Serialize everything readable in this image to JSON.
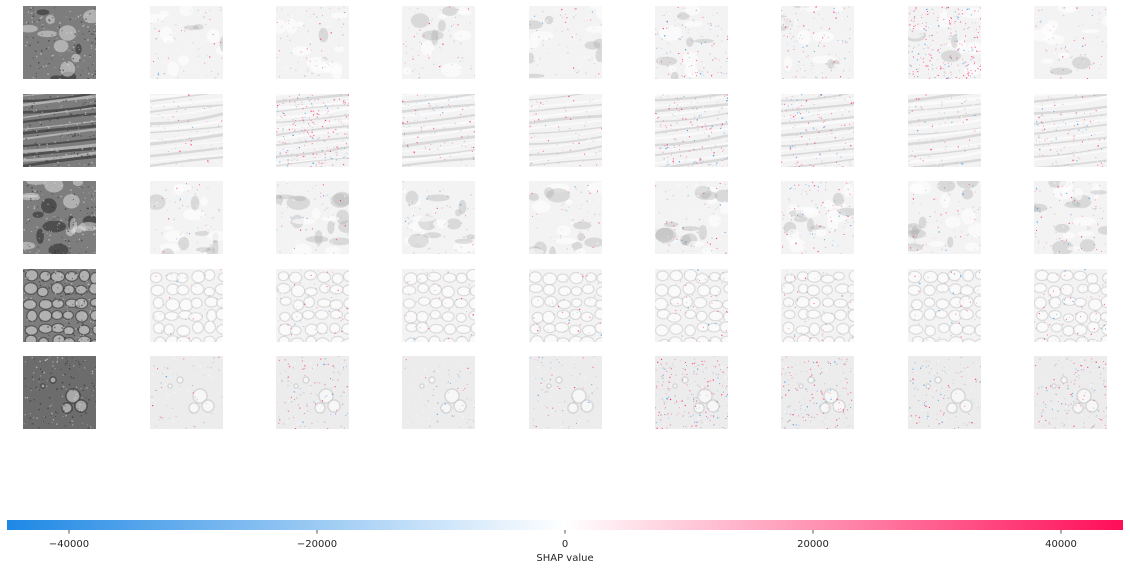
{
  "chart_data": {
    "type": "heatmap",
    "title": "",
    "description_visible": "",
    "rows": 5,
    "columns": 9,
    "first_column": "input-image",
    "row_textures": [
      "rough-cratered",
      "ridged-streaks",
      "rocky-knobs",
      "polygonal-cells",
      "crater-cluster"
    ],
    "colorbar": {
      "label": "SHAP value",
      "min": -45000,
      "max": 45000,
      "ticks": [
        -40000,
        -20000,
        0,
        20000,
        40000
      ],
      "tick_labels": [
        "−40000",
        "−20000",
        "0",
        "20000",
        "40000"
      ],
      "color_negative": "#1E88E5",
      "color_zero": "#FFFFFF",
      "color_positive": "#FF0D57"
    },
    "attribution_intensity": [
      [
        0.0,
        0.05,
        0.08,
        0.1,
        0.06,
        0.2,
        0.18,
        0.55,
        0.08
      ],
      [
        0.0,
        0.06,
        0.45,
        0.15,
        0.08,
        0.3,
        0.25,
        0.12,
        0.2
      ],
      [
        0.0,
        0.04,
        0.06,
        0.06,
        0.05,
        0.1,
        0.18,
        0.08,
        0.15
      ],
      [
        0.0,
        0.03,
        0.08,
        0.05,
        0.06,
        0.08,
        0.08,
        0.06,
        0.12
      ],
      [
        0.0,
        0.04,
        0.2,
        0.06,
        0.1,
        0.4,
        0.3,
        0.18,
        0.25
      ]
    ]
  }
}
